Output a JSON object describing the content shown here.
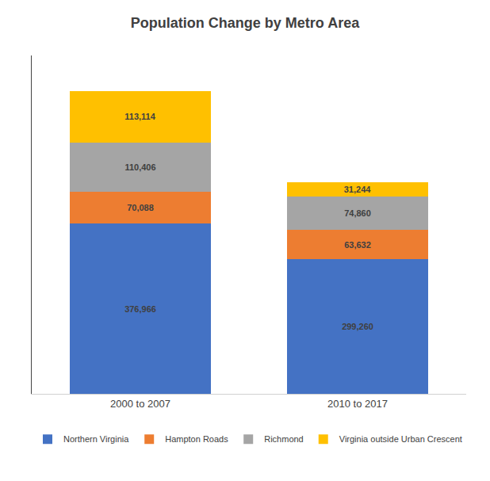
{
  "chart_data": {
    "type": "bar",
    "stacked": true,
    "title": "Population Change by Metro Area",
    "categories": [
      "2000 to 2007",
      "2010 to 2017"
    ],
    "series": [
      {
        "name": "Northern Virginia",
        "color": "#4472C4",
        "values": [
          376966,
          299260
        ],
        "value_labels": [
          "376,966",
          "299,260"
        ]
      },
      {
        "name": "Hampton Roads",
        "color": "#ED7D31",
        "values": [
          70088,
          63632
        ],
        "value_labels": [
          "70,088",
          "63,632"
        ]
      },
      {
        "name": "Richmond",
        "color": "#A5A5A5",
        "values": [
          110406,
          74860
        ],
        "value_labels": [
          "110,406",
          "74,860"
        ]
      },
      {
        "name": "Virginia outside Urban Crescent",
        "color": "#FFC000",
        "values": [
          113114,
          31244
        ],
        "value_labels": [
          "113,114",
          "31,244"
        ]
      }
    ],
    "ylim": [
      0,
      750000
    ],
    "yticks": [],
    "grid": false,
    "data_labels": true,
    "tick_labels": "x",
    "legend": "bottom"
  }
}
